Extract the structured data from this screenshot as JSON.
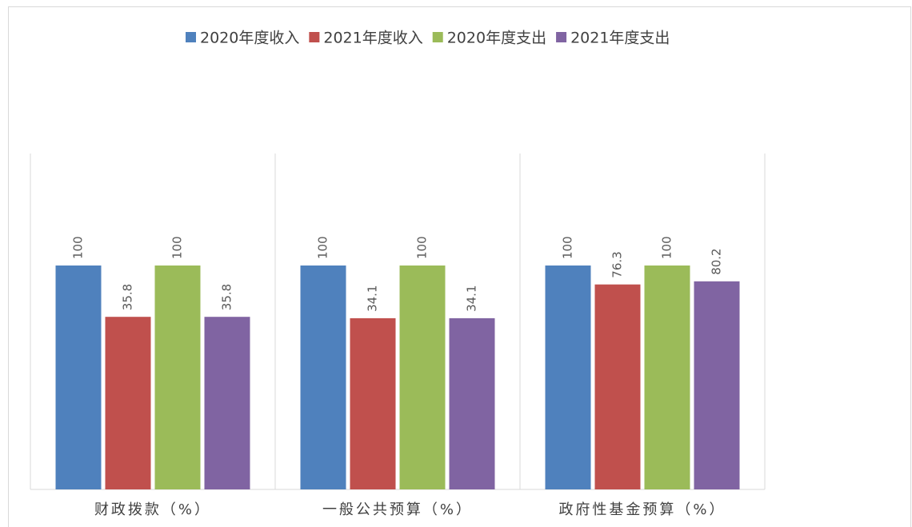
{
  "chart_data": {
    "type": "bar",
    "categories": [
      "财政拨款（%）",
      "一般公共预算（%）",
      "政府性基金预算（%）"
    ],
    "series": [
      {
        "name": "2020年度收入",
        "color": "#4f81bd",
        "values": [
          100,
          100,
          100
        ]
      },
      {
        "name": "2021年度收入",
        "color": "#c0504d",
        "values": [
          35.8,
          34.1,
          76.3
        ]
      },
      {
        "name": "2020年度支出",
        "color": "#9bbb59",
        "values": [
          100,
          100,
          100
        ]
      },
      {
        "name": "2021年度支出",
        "color": "#8064a2",
        "values": [
          35.8,
          34.1,
          80.2
        ]
      }
    ],
    "ylim": [
      -180,
      240
    ],
    "legend": "top"
  }
}
